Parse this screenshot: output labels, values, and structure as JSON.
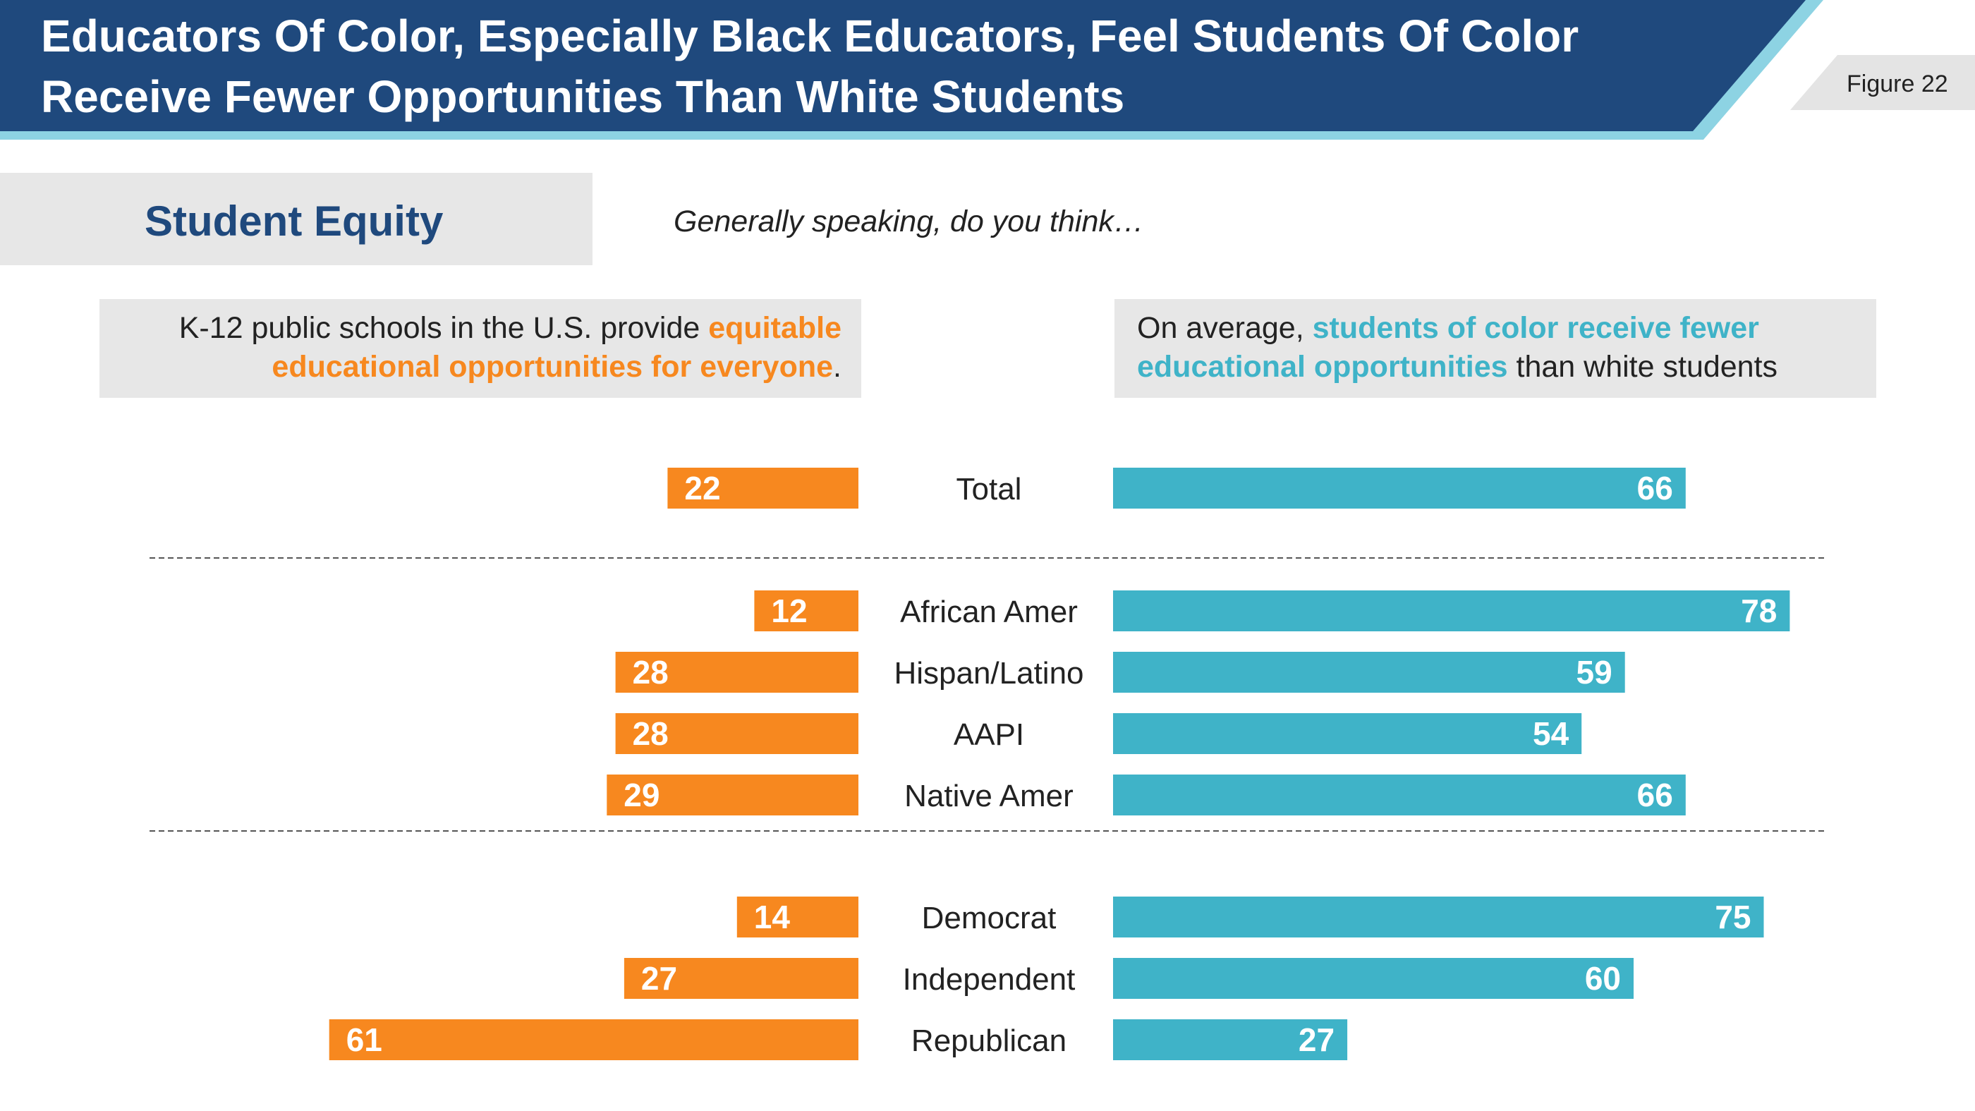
{
  "title": {
    "line1": "Educators Of Color, Especially Black Educators, Feel Students Of Color",
    "line2": "Receive Fewer Opportunities Than White Students"
  },
  "figure_label": "Figure 22",
  "section": {
    "title": "Student Equity"
  },
  "question": "Generally speaking, do you think…",
  "left_header": {
    "plain1": "K-12 public schools in the U.S. provide ",
    "highlight1": "equitable",
    "highlight2": "educational opportunities for everyone",
    "end": "."
  },
  "right_header": {
    "plain1": "On average, ",
    "highlight1": "students of color receive fewer",
    "highlight2": "educational opportunities",
    "plain2": " than white students"
  },
  "colors": {
    "orange": "#f7881f",
    "teal": "#3fb3c8",
    "navy": "#1f497d",
    "light_blue": "#8dd3e3",
    "gray_box": "#e7e7e7"
  },
  "chart_data": {
    "type": "bar",
    "title": "Generally speaking, do you think…",
    "categories": [
      "Total",
      "African Amer",
      "Hispan/Latino",
      "AAPI",
      "Native Amer",
      "Democrat",
      "Independent",
      "Republican"
    ],
    "groups": [
      [
        "Total"
      ],
      [
        "African Amer",
        "Hispan/Latino",
        "AAPI",
        "Native Amer"
      ],
      [
        "Democrat",
        "Independent",
        "Republican"
      ]
    ],
    "series": [
      {
        "name": "K-12 public schools in the U.S. provide equitable educational opportunities for everyone.",
        "side": "left",
        "color": "#f7881f",
        "values": [
          22,
          12,
          28,
          28,
          29,
          14,
          27,
          61
        ]
      },
      {
        "name": "On average, students of color receive fewer educational opportunities than white students",
        "side": "right",
        "color": "#3fb3c8",
        "values": [
          66,
          78,
          59,
          54,
          66,
          75,
          60,
          27
        ]
      }
    ],
    "xlim": [
      0,
      100
    ]
  }
}
